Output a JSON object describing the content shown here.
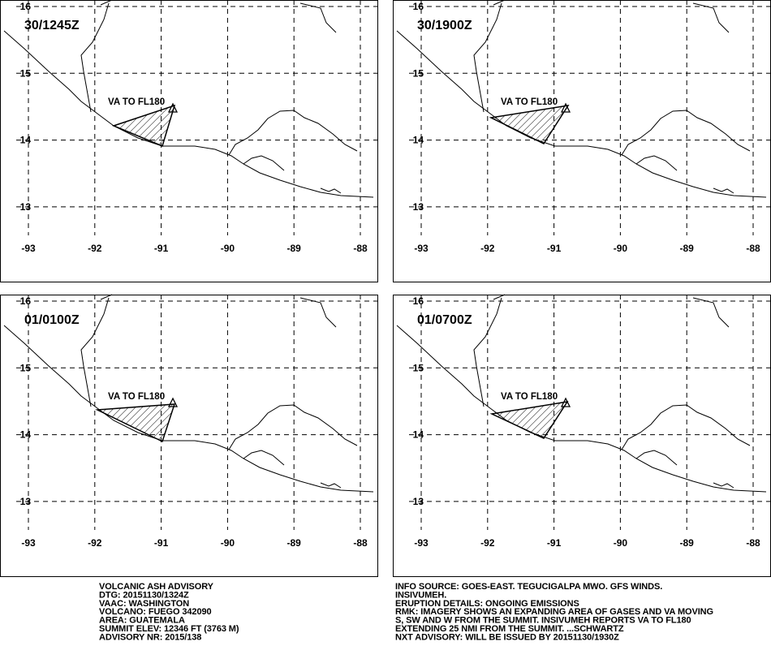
{
  "panels": [
    {
      "valid_time": "30/1245Z",
      "ash_label": "VA TO FL180"
    },
    {
      "valid_time": "30/1900Z",
      "ash_label": "VA TO FL180"
    },
    {
      "valid_time": "01/0100Z",
      "ash_label": "VA TO FL180"
    },
    {
      "valid_time": "01/0700Z",
      "ash_label": "VA TO FL180"
    }
  ],
  "lat_ticks": [
    16,
    15,
    14,
    13
  ],
  "lon_ticks": [
    -93,
    -92,
    -91,
    -90,
    -89,
    -88
  ],
  "advisory_left": [
    "VOLCANIC ASH ADVISORY",
    "DTG: 20151130/1324Z",
    "VAAC: WASHINGTON",
    "VOLCANO: FUEGO 342090",
    "AREA: GUATEMALA",
    "SUMMIT ELEV: 12346 FT (3763 M)",
    "ADVISORY NR: 2015/138"
  ],
  "advisory_right": [
    "INFO SOURCE: GOES-EAST. TEGUCIGALPA MWO. GFS WINDS.",
    "INSIVUMEH.",
    "ERUPTION DETAILS: ONGOING EMISSIONS",
    "RMK: IMAGERY SHOWS AN EXPANDING AREA OF GASES AND VA MOVING",
    "S, SW AND W FROM THE SUMMIT. INSIVUMEH REPORTS VA TO FL180",
    "EXTENDING 25 NMI FROM THE SUMMIT. ...SCHWARTZ",
    "NXT ADVISORY: WILL BE ISSUED BY 20151130/1930Z"
  ]
}
